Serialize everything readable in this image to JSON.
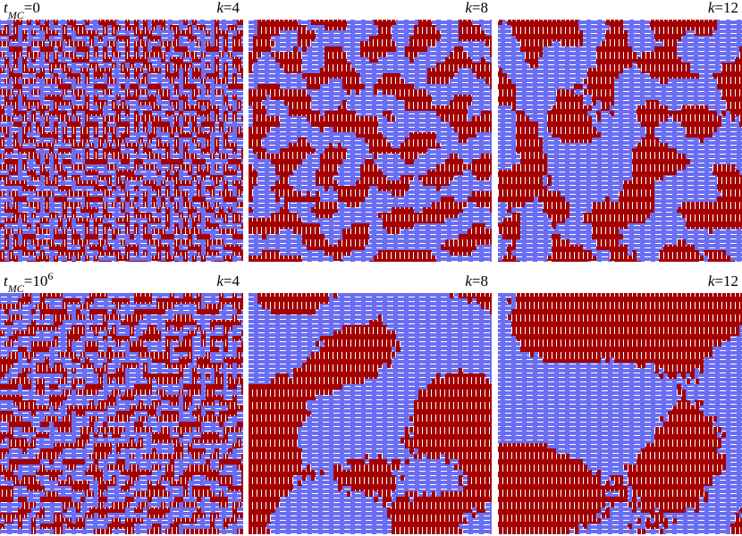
{
  "rows": [
    {
      "time_label": {
        "symbol": "t",
        "subscript": "MC",
        "value": "=0"
      },
      "panels": [
        {
          "symbol": "k",
          "value": "=4"
        },
        {
          "symbol": "k",
          "value": "=8"
        },
        {
          "symbol": "k",
          "value": "=12"
        }
      ]
    },
    {
      "time_label": {
        "symbol": "t",
        "subscript": "MC",
        "value": "=10",
        "superscript": "6"
      },
      "panels": [
        {
          "symbol": "k",
          "value": "=4"
        },
        {
          "symbol": "k",
          "value": "=8"
        },
        {
          "symbol": "k",
          "value": "=12"
        }
      ]
    }
  ]
}
